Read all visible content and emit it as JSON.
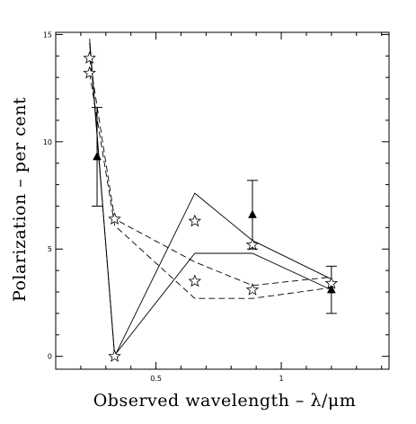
{
  "chart_data": {
    "type": "line",
    "title": "",
    "xlabel": "Observed wavelength  –  λ/μm",
    "ylabel": "Polarization  –  per cent",
    "xlim": [
      0.1,
      1.43
    ],
    "ylim": [
      -0.6,
      15.1
    ],
    "x_ticks": [
      {
        "value": 0.5,
        "label": "0.5"
      },
      {
        "value": 1.0,
        "label": "1"
      }
    ],
    "y_ticks": [
      {
        "value": 0,
        "label": "0"
      },
      {
        "value": 5,
        "label": "5"
      },
      {
        "value": 10,
        "label": "10"
      },
      {
        "value": 15,
        "label": "15"
      }
    ],
    "grid": false,
    "series": [
      {
        "style": "solid",
        "x": [
          0.235,
          0.335,
          0.655,
          0.885,
          1.2
        ],
        "y": [
          14.8,
          0.0,
          7.6,
          5.4,
          3.6
        ]
      },
      {
        "style": "solid",
        "x": [
          0.235,
          0.335,
          0.655,
          0.885,
          1.2
        ],
        "y": [
          14.6,
          0.05,
          4.8,
          4.8,
          3.1
        ]
      },
      {
        "style": "dashed",
        "x": [
          0.235,
          0.335,
          0.655,
          0.885,
          1.2
        ],
        "y": [
          13.9,
          6.4,
          4.4,
          3.3,
          3.7
        ]
      },
      {
        "style": "dashed",
        "x": [
          0.235,
          0.335,
          0.655,
          0.885,
          1.2
        ],
        "y": [
          13.2,
          6.1,
          2.7,
          2.7,
          3.2
        ]
      }
    ],
    "model_points": {
      "marker": "open-star",
      "points": [
        {
          "x": 0.235,
          "y": 13.9
        },
        {
          "x": 0.235,
          "y": 13.2
        },
        {
          "x": 0.335,
          "y": 6.4
        },
        {
          "x": 0.335,
          "y": 0.0
        },
        {
          "x": 0.655,
          "y": 6.3
        },
        {
          "x": 0.655,
          "y": 3.5
        },
        {
          "x": 0.885,
          "y": 5.2
        },
        {
          "x": 0.885,
          "y": 3.1
        },
        {
          "x": 1.2,
          "y": 3.4
        }
      ]
    },
    "observed": {
      "marker": "filled-triangle",
      "points": [
        {
          "x": 0.265,
          "y": 9.3,
          "err": 2.3
        },
        {
          "x": 0.885,
          "y": 6.6,
          "err": 1.6
        },
        {
          "x": 1.2,
          "y": 3.1,
          "err": 1.1
        }
      ]
    }
  }
}
